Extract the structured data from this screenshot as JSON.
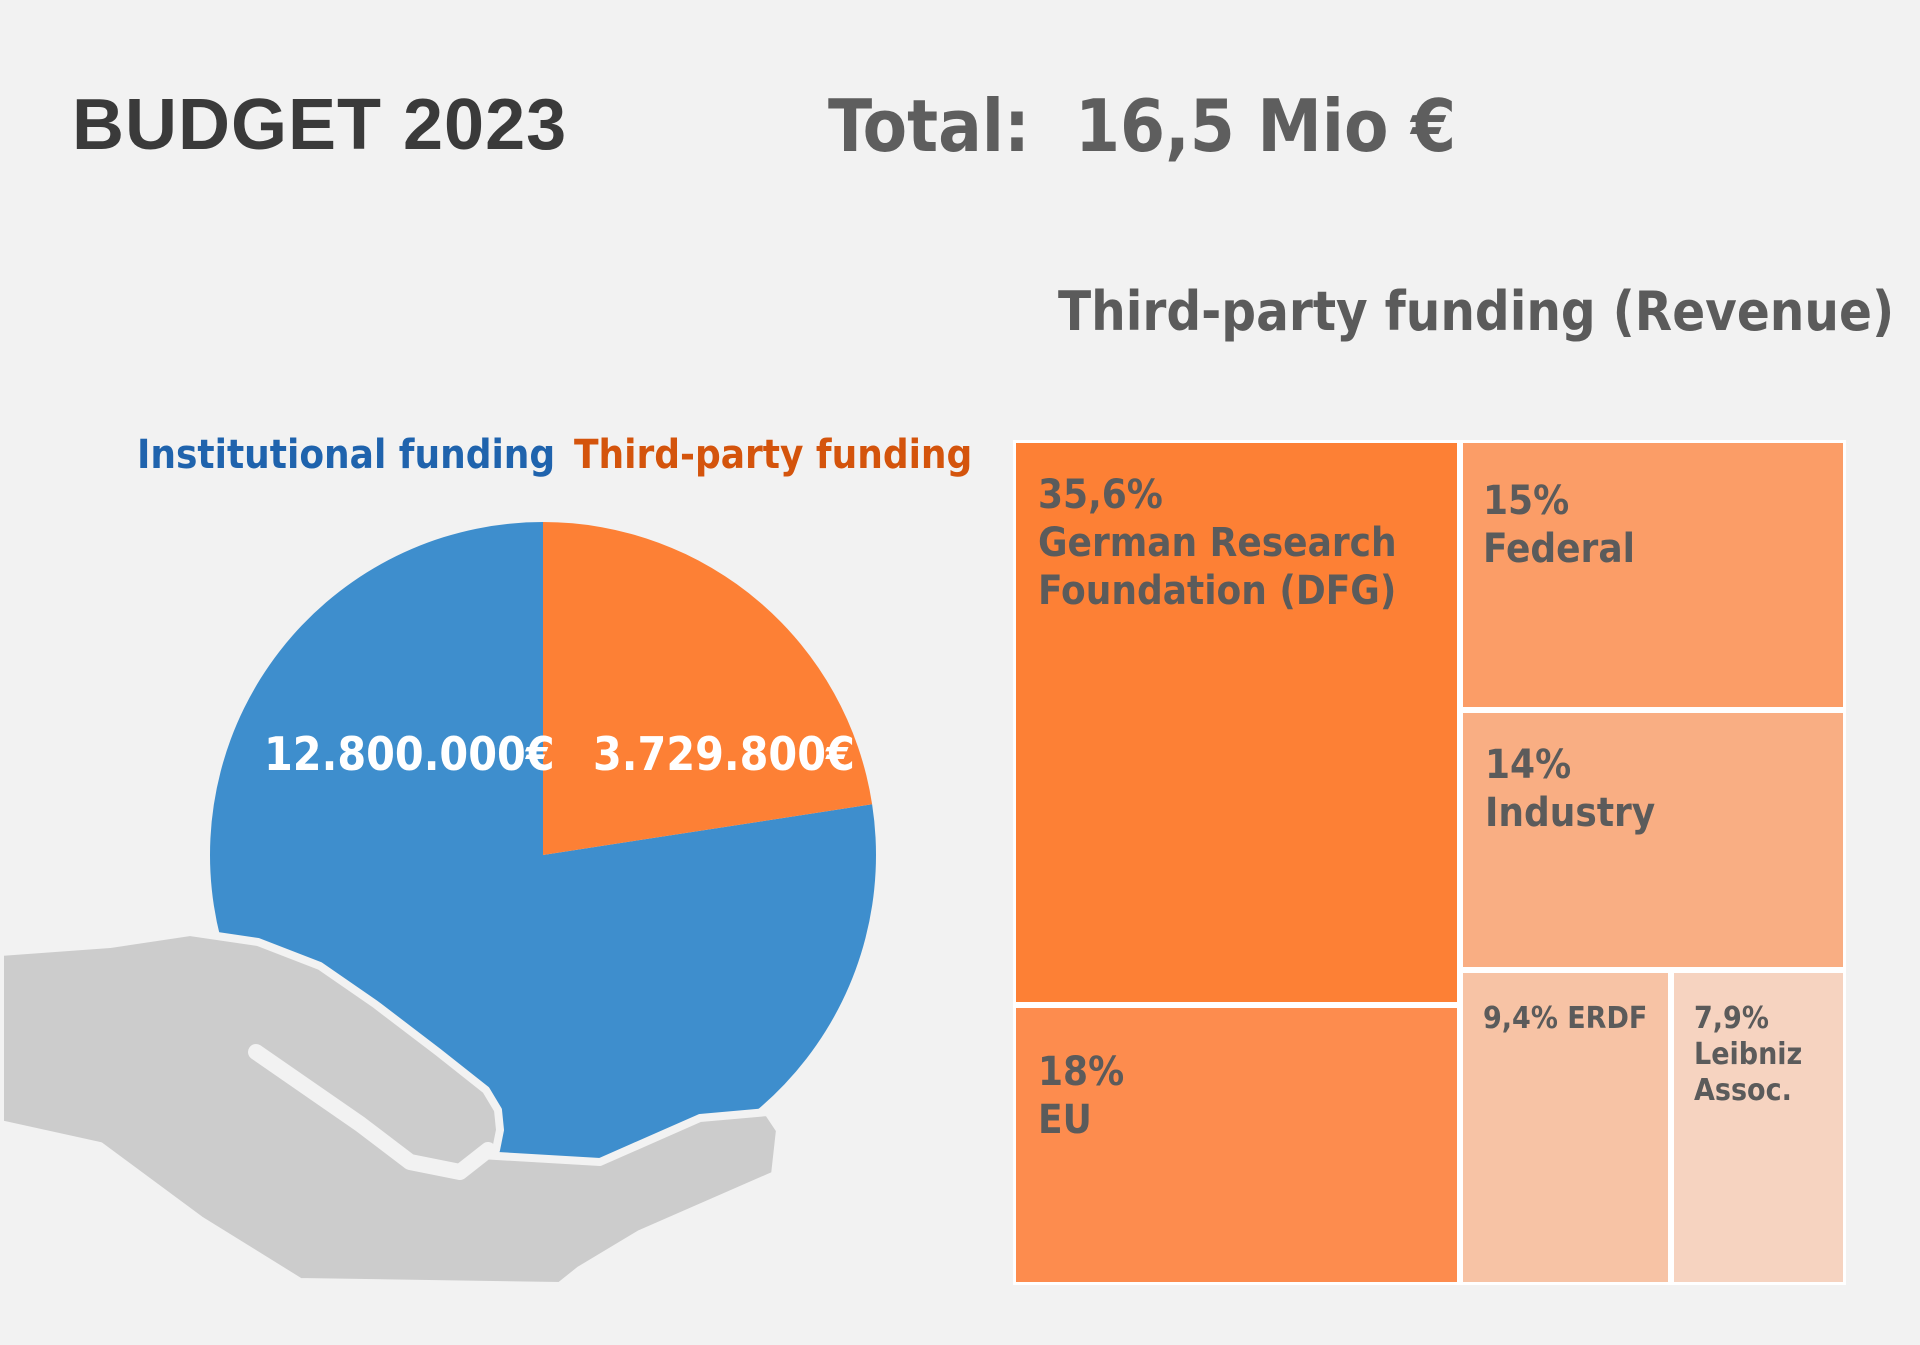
{
  "title": "BUDGET 2023",
  "total": "Total:  16,5 Mio €",
  "colors": {
    "institutional": "#3e8ecd",
    "third_party": "#fd8035",
    "hand": "#cccccc"
  },
  "icons": {
    "hand": "hand-icon"
  },
  "chart_data": [
    {
      "type": "pie",
      "title": "",
      "legend": [
        "Institutional funding",
        "Third-party funding"
      ],
      "slices": [
        {
          "name": "Institutional funding",
          "value": 12800000,
          "label": "12.800.000€",
          "color": "#3e8ecd"
        },
        {
          "name": "Third-party funding",
          "value": 3729800,
          "label": "3.729.800€",
          "color": "#fd8035"
        }
      ]
    },
    {
      "type": "treemap",
      "title": "Third-party funding (Revenue)",
      "items": [
        {
          "name": "German Research Foundation (DFG)",
          "value": 35.6,
          "label": "35,6%\nGerman Research\nFoundation (DFG)",
          "color": "#fd8035"
        },
        {
          "name": "EU",
          "value": 18,
          "label": "18%\nEU",
          "color": "#fd8c4e"
        },
        {
          "name": "Federal",
          "value": 15,
          "label": "15%\nFederal",
          "color": "#fb9d67"
        },
        {
          "name": "Industry",
          "value": 14,
          "label": "14%\nIndustry",
          "color": "#f9ae83"
        },
        {
          "name": "ERDF",
          "value": 9.4,
          "label": "9,4% ERDF",
          "color": "#f7c3a5"
        },
        {
          "name": "Leibniz Assoc.",
          "value": 7.9,
          "label": "7,9%\nLeibniz\nAssoc.",
          "color": "#f6d3c0"
        }
      ]
    }
  ]
}
